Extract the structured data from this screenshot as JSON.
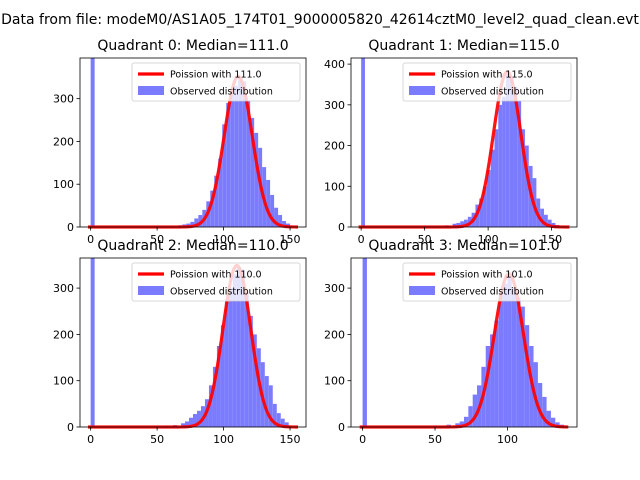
{
  "figure": {
    "suptitle": "Data from file: modeM0/AS1A05_174T01_9000005820_42614cztM0_level2_quad_clean.evt"
  },
  "colors": {
    "hist": "#7b7bff",
    "fit": "#ff0000"
  },
  "chart_data": [
    {
      "type": "bar+line",
      "title": "Quadrant 0: Median=111.0",
      "xlim": [
        -8,
        162
      ],
      "ylim": [
        0,
        395
      ],
      "xticks": [
        0,
        50,
        100,
        150
      ],
      "yticks": [
        0,
        100,
        200,
        300
      ],
      "bin_width": 3,
      "legend": [
        "Poission with 111.0",
        "Observed distribution"
      ],
      "legend_position": "upper right",
      "mean": 111.0,
      "peak": 352,
      "hist_x": [
        0,
        60,
        66,
        69,
        72,
        75,
        78,
        81,
        84,
        87,
        90,
        93,
        96,
        99,
        102,
        105,
        108,
        111,
        114,
        117,
        120,
        123,
        126,
        129,
        132,
        135,
        138,
        141,
        144,
        147
      ],
      "hist_y": [
        395,
        2,
        4,
        6,
        8,
        12,
        20,
        28,
        40,
        60,
        85,
        120,
        160,
        240,
        290,
        310,
        330,
        350,
        340,
        295,
        255,
        220,
        185,
        140,
        110,
        75,
        45,
        28,
        14,
        8
      ]
    },
    {
      "type": "bar+line",
      "title": "Quadrant 1: Median=115.0",
      "xlim": [
        -8,
        170
      ],
      "ylim": [
        0,
        415
      ],
      "xticks": [
        0,
        50,
        100,
        150
      ],
      "yticks": [
        0,
        100,
        200,
        300,
        400
      ],
      "bin_width": 3,
      "legend": [
        "Poission with 115.0",
        "Observed distribution"
      ],
      "legend_position": "upper right",
      "mean": 115.0,
      "peak": 381,
      "hist_x": [
        0,
        60,
        66,
        72,
        75,
        78,
        81,
        84,
        87,
        90,
        93,
        96,
        99,
        102,
        105,
        108,
        111,
        114,
        117,
        120,
        123,
        126,
        129,
        132,
        135,
        138,
        141,
        144,
        147,
        150,
        153
      ],
      "hist_y": [
        415,
        2,
        4,
        8,
        10,
        14,
        18,
        25,
        35,
        55,
        70,
        100,
        140,
        190,
        240,
        300,
        320,
        380,
        370,
        345,
        310,
        240,
        200,
        150,
        120,
        70,
        45,
        30,
        18,
        10,
        5
      ]
    },
    {
      "type": "bar+line",
      "title": "Quadrant 2: Median=110.0",
      "xlim": [
        -8,
        162
      ],
      "ylim": [
        0,
        365
      ],
      "xticks": [
        0,
        50,
        100,
        150
      ],
      "yticks": [
        0,
        100,
        200,
        300
      ],
      "bin_width": 3,
      "legend": [
        "Poission with 110.0",
        "Observed distribution"
      ],
      "legend_position": "upper right",
      "mean": 110.0,
      "peak": 349,
      "hist_x": [
        0,
        55,
        62,
        68,
        71,
        74,
        77,
        80,
        83,
        86,
        89,
        92,
        95,
        98,
        101,
        104,
        107,
        110,
        113,
        116,
        119,
        122,
        125,
        128,
        131,
        134,
        137,
        140,
        143,
        146
      ],
      "hist_y": [
        365,
        2,
        4,
        8,
        12,
        20,
        28,
        35,
        45,
        60,
        90,
        130,
        175,
        220,
        270,
        300,
        330,
        345,
        340,
        290,
        240,
        200,
        170,
        140,
        110,
        90,
        50,
        30,
        18,
        10
      ]
    },
    {
      "type": "bar+line",
      "title": "Quadrant 3: Median=101.0",
      "xlim": [
        -8,
        148
      ],
      "ylim": [
        0,
        365
      ],
      "xticks": [
        0,
        50,
        100
      ],
      "yticks": [
        0,
        100,
        200,
        300
      ],
      "bin_width": 3,
      "legend": [
        "Poission with 101.0",
        "Observed distribution"
      ],
      "legend_position": "upper right",
      "mean": 101.0,
      "peak": 331,
      "hist_x": [
        0,
        58,
        64,
        67,
        70,
        73,
        76,
        79,
        82,
        85,
        88,
        91,
        94,
        97,
        100,
        103,
        106,
        109,
        112,
        115,
        118,
        121,
        124,
        127,
        130,
        133,
        136
      ],
      "hist_y": [
        365,
        5,
        8,
        12,
        22,
        45,
        70,
        90,
        130,
        175,
        200,
        230,
        290,
        310,
        325,
        300,
        280,
        260,
        220,
        175,
        140,
        95,
        65,
        35,
        20,
        10,
        5
      ]
    }
  ]
}
